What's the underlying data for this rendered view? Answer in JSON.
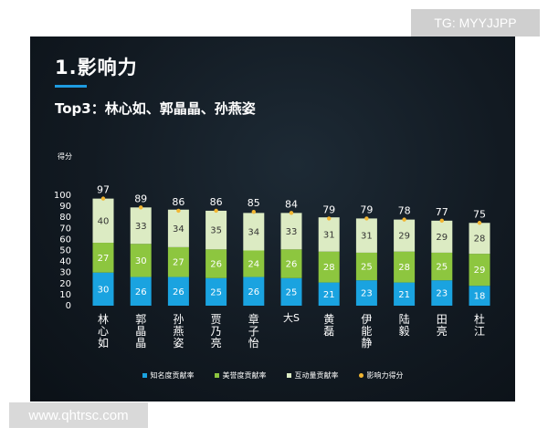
{
  "slide_title": "1.影响力",
  "subtitle": "Top3：林心如、郭晶晶、孙燕姿",
  "watermark_top": "TG: MYYJJPP",
  "watermark_bottom": "www.qhtrsc.com",
  "colors": {
    "awareness": "#1aa3e0",
    "reputation": "#8dc63f",
    "interaction": "#dcebc3",
    "score_dot": "#f2b632"
  },
  "chart_data": {
    "type": "bar",
    "stacked": true,
    "ylabel": "得分",
    "ylim": [
      0,
      100
    ],
    "yticks": [
      0,
      10,
      20,
      30,
      40,
      50,
      60,
      70,
      80,
      90,
      100
    ],
    "categories": [
      "林心如",
      "郭晶晶",
      "孙燕姿",
      "贾乃亮",
      "章子怡",
      "大S",
      "黄磊",
      "伊能静",
      "陆毅",
      "田亮",
      "杜江"
    ],
    "series": [
      {
        "name": "知名度贡献率",
        "values": [
          30,
          26,
          26,
          25,
          26,
          25,
          21,
          23,
          21,
          23,
          18
        ]
      },
      {
        "name": "美誉度贡献率",
        "values": [
          27,
          30,
          27,
          26,
          24,
          26,
          28,
          25,
          28,
          25,
          29
        ]
      },
      {
        "name": "互动量贡献率",
        "values": [
          40,
          33,
          34,
          35,
          34,
          33,
          31,
          31,
          29,
          29,
          28
        ]
      }
    ],
    "totals_series": {
      "name": "影响力得分",
      "values": [
        97,
        89,
        86,
        86,
        85,
        84,
        79,
        79,
        78,
        77,
        75
      ]
    },
    "legend_position": "bottom"
  }
}
